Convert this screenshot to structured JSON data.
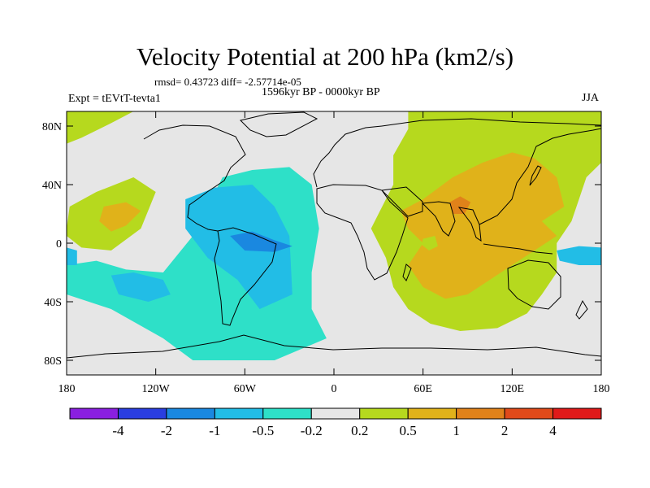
{
  "title": "Velocity Potential at 200 hPa (km2/s)",
  "stats_line": "rmsd= 0.43723 diff= -2.57714e-05",
  "period_line": "1596kyr BP - 0000kyr BP",
  "experiment_line": "Expt = tEVtT-tevta1",
  "season": "JJA",
  "chart_data": {
    "type": "heatmap",
    "title": "Velocity Potential at 200 hPa (km2/s)",
    "x_ticks": [
      {
        "value": -180,
        "label": "180"
      },
      {
        "value": -120,
        "label": "120W"
      },
      {
        "value": -60,
        "label": "60W"
      },
      {
        "value": 0,
        "label": "0"
      },
      {
        "value": 60,
        "label": "60E"
      },
      {
        "value": 120,
        "label": "120E"
      },
      {
        "value": 180,
        "label": "180"
      }
    ],
    "y_ticks": [
      {
        "value": 80,
        "label": "80N"
      },
      {
        "value": 40,
        "label": "40N"
      },
      {
        "value": 0,
        "label": "0"
      },
      {
        "value": -40,
        "label": "40S"
      },
      {
        "value": -80,
        "label": "80S"
      }
    ],
    "xlim": [
      -180,
      180
    ],
    "ylim": [
      -90,
      90
    ],
    "colorbar": {
      "boundaries": [
        "-4",
        "-2",
        "-1",
        "-0.5",
        "-0.2",
        "0.2",
        "0.5",
        "1",
        "2",
        "4"
      ],
      "colors": [
        "#8a1fe0",
        "#2a3ee0",
        "#1a88e0",
        "#22bde6",
        "#2ee0c8",
        "#e6e6e6",
        "#b6d91e",
        "#e0b21a",
        "#e0821a",
        "#e04a1a",
        "#e01a1a"
      ]
    },
    "regions": [
      {
        "level": "-0.5 to -0.2",
        "fill": "#2ee0c8",
        "points": [
          [
            -180,
            -35
          ],
          [
            -180,
            -15
          ],
          [
            -160,
            -12
          ],
          [
            -140,
            -18
          ],
          [
            -115,
            -20
          ],
          [
            -95,
            5
          ],
          [
            -85,
            25
          ],
          [
            -75,
            45
          ],
          [
            -55,
            50
          ],
          [
            -30,
            52
          ],
          [
            -15,
            40
          ],
          [
            -10,
            10
          ],
          [
            -15,
            -20
          ],
          [
            -15,
            -45
          ],
          [
            -5,
            -65
          ],
          [
            -40,
            -80
          ],
          [
            -95,
            -80
          ],
          [
            -115,
            -65
          ],
          [
            -150,
            -45
          ]
        ]
      },
      {
        "level": "-1 to -0.5",
        "fill": "#22bde6",
        "points": [
          [
            -100,
            30
          ],
          [
            -80,
            38
          ],
          [
            -55,
            40
          ],
          [
            -40,
            25
          ],
          [
            -30,
            5
          ],
          [
            -28,
            -35
          ],
          [
            -50,
            -45
          ],
          [
            -65,
            -25
          ],
          [
            -85,
            -10
          ],
          [
            -100,
            10
          ]
        ]
      },
      {
        "level": "-1 to -0.5",
        "fill": "#22bde6",
        "points": [
          [
            -150,
            -22
          ],
          [
            -135,
            -20
          ],
          [
            -115,
            -25
          ],
          [
            -110,
            -35
          ],
          [
            -125,
            -40
          ],
          [
            -145,
            -35
          ]
        ]
      },
      {
        "level": "-1 to -0.5",
        "fill": "#22bde6",
        "points": [
          [
            150,
            -5
          ],
          [
            165,
            -2
          ],
          [
            180,
            -3
          ],
          [
            180,
            -15
          ],
          [
            165,
            -15
          ],
          [
            152,
            -12
          ]
        ]
      },
      {
        "level": "-1 to -0.5",
        "fill": "#22bde6",
        "points": [
          [
            -180,
            -3
          ],
          [
            -173,
            -5
          ],
          [
            -173,
            -15
          ],
          [
            -180,
            -15
          ]
        ]
      },
      {
        "level": "-2 to -1",
        "fill": "#1a88e0",
        "points": [
          [
            -70,
            5
          ],
          [
            -55,
            8
          ],
          [
            -40,
            2
          ],
          [
            -28,
            -2
          ],
          [
            -40,
            -6
          ],
          [
            -60,
            -5
          ]
        ]
      },
      {
        "level": "0.2 to 0.5",
        "fill": "#b6d91e",
        "points": [
          [
            -180,
            10
          ],
          [
            -178,
            25
          ],
          [
            -160,
            35
          ],
          [
            -135,
            45
          ],
          [
            -120,
            35
          ],
          [
            -130,
            10
          ],
          [
            -150,
            -5
          ],
          [
            -170,
            -3
          ],
          [
            -180,
            5
          ]
        ]
      },
      {
        "level": "0.2 to 0.5",
        "fill": "#b6d91e",
        "points": [
          [
            -180,
            68
          ],
          [
            -180,
            90
          ],
          [
            -135,
            90
          ],
          [
            -150,
            82
          ],
          [
            -170,
            72
          ]
        ]
      },
      {
        "level": "0.2 to 0.5",
        "fill": "#b6d91e",
        "points": [
          [
            30,
            20
          ],
          [
            40,
            40
          ],
          [
            40,
            60
          ],
          [
            50,
            78
          ],
          [
            50,
            90
          ],
          [
            180,
            90
          ],
          [
            180,
            55
          ],
          [
            170,
            45
          ],
          [
            165,
            30
          ],
          [
            160,
            15
          ],
          [
            150,
            0
          ],
          [
            150,
            -20
          ],
          [
            140,
            -35
          ],
          [
            130,
            -48
          ],
          [
            110,
            -58
          ],
          [
            85,
            -60
          ],
          [
            65,
            -55
          ],
          [
            50,
            -45
          ],
          [
            40,
            -30
          ],
          [
            35,
            -10
          ],
          [
            25,
            10
          ]
        ]
      },
      {
        "level": "0.5 to 1",
        "fill": "#e0b21a",
        "points": [
          [
            -155,
            25
          ],
          [
            -140,
            28
          ],
          [
            -130,
            22
          ],
          [
            -140,
            12
          ],
          [
            -150,
            8
          ],
          [
            -158,
            15
          ]
        ]
      },
      {
        "level": "0.5 to 1",
        "fill": "#e0b21a",
        "points": [
          [
            45,
            22
          ],
          [
            60,
            30
          ],
          [
            80,
            45
          ],
          [
            100,
            55
          ],
          [
            120,
            62
          ],
          [
            135,
            58
          ],
          [
            150,
            45
          ],
          [
            155,
            25
          ],
          [
            140,
            15
          ],
          [
            150,
            5
          ],
          [
            135,
            -5
          ],
          [
            120,
            -15
          ],
          [
            105,
            -25
          ],
          [
            90,
            -35
          ],
          [
            75,
            -38
          ],
          [
            60,
            -30
          ],
          [
            50,
            -15
          ],
          [
            60,
            0
          ],
          [
            50,
            10
          ]
        ]
      },
      {
        "level": "1 to 2",
        "fill": "#e0821a",
        "points": [
          [
            78,
            28
          ],
          [
            85,
            32
          ],
          [
            92,
            28
          ],
          [
            88,
            20
          ],
          [
            80,
            20
          ]
        ]
      },
      {
        "level": "0.2 to 0.5",
        "fill": "#b6d91e",
        "points": [
          [
            60,
            3
          ],
          [
            68,
            5
          ],
          [
            70,
            -2
          ],
          [
            64,
            -5
          ],
          [
            59,
            -1
          ]
        ]
      }
    ]
  }
}
